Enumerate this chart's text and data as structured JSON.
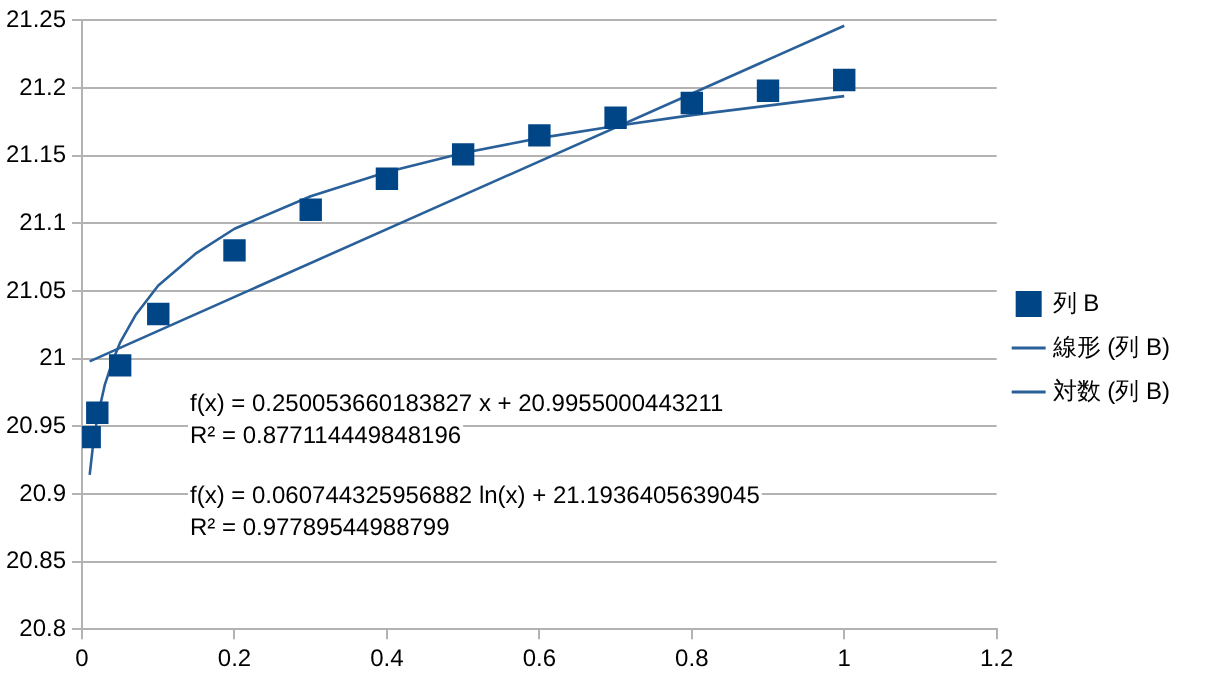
{
  "chart_data": {
    "type": "scatter",
    "xlim": [
      0,
      1.2
    ],
    "xticks": [
      0,
      0.2,
      0.4,
      0.6,
      0.8,
      1,
      1.2
    ],
    "ylim": [
      20.8,
      21.25
    ],
    "yticks": [
      20.8,
      20.85,
      20.9,
      20.95,
      21,
      21.05,
      21.1,
      21.15,
      21.2,
      21.25
    ],
    "grid": "y",
    "legend": "right",
    "series": [
      {
        "name": "列 B",
        "marker": "square",
        "color": "#004586",
        "x": [
          0.01,
          0.02,
          0.05,
          0.1,
          0.2,
          0.3,
          0.4,
          0.5,
          0.6,
          0.7,
          0.8,
          0.9,
          1
        ],
        "values": [
          20.942,
          20.96,
          20.995,
          21.033,
          21.08,
          21.11,
          21.133,
          21.151,
          21.165,
          21.178,
          21.189,
          21.198,
          21.206
        ]
      },
      {
        "name": "線形 (列 B)",
        "type": "line",
        "marker": "none",
        "color": "#2a6099",
        "x": [
          0.01,
          1
        ],
        "values": [
          20.998,
          21.246
        ]
      },
      {
        "name": "対数 (列 B)",
        "type": "line",
        "marker": "none",
        "color": "#2a6099",
        "x": [
          0.01,
          0.015,
          0.02,
          0.03,
          0.04,
          0.05,
          0.07,
          0.1,
          0.15,
          0.2,
          0.3,
          0.4,
          0.5,
          0.6,
          0.7,
          0.8,
          0.9,
          1
        ],
        "values": [
          20.914,
          20.939,
          20.956,
          20.981,
          20.998,
          21.012,
          21.032,
          21.054,
          21.078,
          21.096,
          21.12,
          21.138,
          21.152,
          21.163,
          21.172,
          21.18,
          21.187,
          21.194
        ]
      }
    ],
    "annotations": [
      "f(x) = 0.250053660183827 x + 20.9955000443211",
      "R² = 0.877114449848196",
      "f(x) = 0.060744325956882 ln(x) + 21.1936405639045",
      "R² = 0.97789544988799"
    ]
  }
}
